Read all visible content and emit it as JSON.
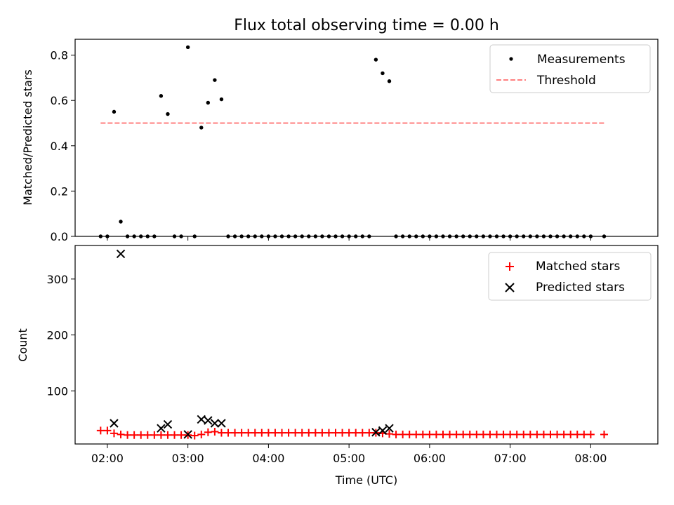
{
  "colors": {
    "threshold": "#ff7f7f",
    "matched": "#ff0000",
    "predicted": "#000000",
    "measurement": "#000000"
  },
  "chart_data": [
    {
      "type": "scatter",
      "title": "Flux total observing time = 0.00 h",
      "xlabel": "",
      "ylabel": "Matched/Predicted stars",
      "xlim": [
        "01:36",
        "08:50"
      ],
      "ylim": [
        0,
        0.87
      ],
      "yticks": [
        "0.0",
        "0.2",
        "0.4",
        "0.6",
        "0.8"
      ],
      "yticks_values": [
        0,
        0.2,
        0.4,
        0.6,
        0.8
      ],
      "xticks": [
        "02:00",
        "03:00",
        "04:00",
        "05:00",
        "06:00",
        "07:00",
        "08:00"
      ],
      "legend": {
        "position": "top-right",
        "entries": [
          "Measurements",
          "Threshold"
        ]
      },
      "threshold": {
        "name": "Threshold",
        "value": 0.5,
        "x_start": "01:55",
        "x_end": "08:10"
      },
      "series": [
        {
          "name": "Measurements",
          "points": [
            [
              "01:55",
              0
            ],
            [
              "02:00",
              0
            ],
            [
              "02:05",
              0.55
            ],
            [
              "02:10",
              0.065
            ],
            [
              "02:15",
              0
            ],
            [
              "02:20",
              0
            ],
            [
              "02:25",
              0
            ],
            [
              "02:30",
              0
            ],
            [
              "02:35",
              0
            ],
            [
              "02:40",
              0.62
            ],
            [
              "02:45",
              0.54
            ],
            [
              "02:50",
              0
            ],
            [
              "02:55",
              0
            ],
            [
              "03:00",
              0.835
            ],
            [
              "03:05",
              0
            ],
            [
              "03:10",
              0.48
            ],
            [
              "03:15",
              0.59
            ],
            [
              "03:20",
              0.69
            ],
            [
              "03:25",
              0.605
            ],
            [
              "03:30",
              0
            ],
            [
              "03:35",
              0
            ],
            [
              "03:40",
              0
            ],
            [
              "03:45",
              0
            ],
            [
              "03:50",
              0
            ],
            [
              "03:55",
              0
            ],
            [
              "04:00",
              0
            ],
            [
              "04:05",
              0
            ],
            [
              "04:10",
              0
            ],
            [
              "04:15",
              0
            ],
            [
              "04:20",
              0
            ],
            [
              "04:25",
              0
            ],
            [
              "04:30",
              0
            ],
            [
              "04:35",
              0
            ],
            [
              "04:40",
              0
            ],
            [
              "04:45",
              0
            ],
            [
              "04:50",
              0
            ],
            [
              "04:55",
              0
            ],
            [
              "05:00",
              0
            ],
            [
              "05:05",
              0
            ],
            [
              "05:10",
              0
            ],
            [
              "05:15",
              0
            ],
            [
              "05:20",
              0.78
            ],
            [
              "05:25",
              0.72
            ],
            [
              "05:30",
              0.685
            ],
            [
              "05:35",
              0
            ],
            [
              "05:40",
              0
            ],
            [
              "05:45",
              0
            ],
            [
              "05:50",
              0
            ],
            [
              "05:55",
              0
            ],
            [
              "06:00",
              0
            ],
            [
              "06:05",
              0
            ],
            [
              "06:10",
              0
            ],
            [
              "06:15",
              0
            ],
            [
              "06:20",
              0
            ],
            [
              "06:25",
              0
            ],
            [
              "06:30",
              0
            ],
            [
              "06:35",
              0
            ],
            [
              "06:40",
              0
            ],
            [
              "06:45",
              0
            ],
            [
              "06:50",
              0
            ],
            [
              "06:55",
              0
            ],
            [
              "07:00",
              0
            ],
            [
              "07:05",
              0
            ],
            [
              "07:10",
              0
            ],
            [
              "07:15",
              0
            ],
            [
              "07:20",
              0
            ],
            [
              "07:25",
              0
            ],
            [
              "07:30",
              0
            ],
            [
              "07:35",
              0
            ],
            [
              "07:40",
              0
            ],
            [
              "07:45",
              0
            ],
            [
              "07:50",
              0
            ],
            [
              "07:55",
              0
            ],
            [
              "08:00",
              0
            ],
            [
              "08:10",
              0
            ]
          ]
        }
      ]
    },
    {
      "type": "scatter",
      "title": "",
      "xlabel": "Time (UTC)",
      "ylabel": "Count",
      "xlim": [
        "01:36",
        "08:50"
      ],
      "ylim": [
        5,
        360
      ],
      "yticks": [
        "100",
        "200",
        "300"
      ],
      "yticks_values": [
        100,
        200,
        300
      ],
      "xticks": [
        "02:00",
        "03:00",
        "04:00",
        "05:00",
        "06:00",
        "07:00",
        "08:00"
      ],
      "legend": {
        "position": "top-right",
        "entries": [
          "Matched stars",
          "Predicted stars"
        ]
      },
      "series": [
        {
          "name": "Matched stars",
          "points": [
            [
              "01:55",
              29
            ],
            [
              "02:00",
              29
            ],
            [
              "02:05",
              24
            ],
            [
              "02:10",
              22
            ],
            [
              "02:15",
              21
            ],
            [
              "02:20",
              21
            ],
            [
              "02:25",
              21
            ],
            [
              "02:30",
              21
            ],
            [
              "02:35",
              21
            ],
            [
              "02:40",
              21
            ],
            [
              "02:45",
              21
            ],
            [
              "02:50",
              21
            ],
            [
              "02:55",
              21
            ],
            [
              "03:00",
              21
            ],
            [
              "03:05",
              20
            ],
            [
              "03:10",
              22
            ],
            [
              "03:15",
              26
            ],
            [
              "03:20",
              27
            ],
            [
              "03:25",
              25
            ],
            [
              "03:30",
              25
            ],
            [
              "03:35",
              25
            ],
            [
              "03:40",
              25
            ],
            [
              "03:45",
              25
            ],
            [
              "03:50",
              25
            ],
            [
              "03:55",
              25
            ],
            [
              "04:00",
              25
            ],
            [
              "04:05",
              25
            ],
            [
              "04:10",
              25
            ],
            [
              "04:15",
              25
            ],
            [
              "04:20",
              25
            ],
            [
              "04:25",
              25
            ],
            [
              "04:30",
              25
            ],
            [
              "04:35",
              25
            ],
            [
              "04:40",
              25
            ],
            [
              "04:45",
              25
            ],
            [
              "04:50",
              25
            ],
            [
              "04:55",
              25
            ],
            [
              "05:00",
              25
            ],
            [
              "05:05",
              25
            ],
            [
              "05:10",
              25
            ],
            [
              "05:15",
              25
            ],
            [
              "05:20",
              25
            ],
            [
              "05:25",
              24
            ],
            [
              "05:30",
              23
            ],
            [
              "05:35",
              22
            ],
            [
              "05:40",
              22
            ],
            [
              "05:45",
              22
            ],
            [
              "05:50",
              22
            ],
            [
              "05:55",
              22
            ],
            [
              "06:00",
              22
            ],
            [
              "06:05",
              22
            ],
            [
              "06:10",
              22
            ],
            [
              "06:15",
              22
            ],
            [
              "06:20",
              22
            ],
            [
              "06:25",
              22
            ],
            [
              "06:30",
              22
            ],
            [
              "06:35",
              22
            ],
            [
              "06:40",
              22
            ],
            [
              "06:45",
              22
            ],
            [
              "06:50",
              22
            ],
            [
              "06:55",
              22
            ],
            [
              "07:00",
              22
            ],
            [
              "07:05",
              22
            ],
            [
              "07:10",
              22
            ],
            [
              "07:15",
              22
            ],
            [
              "07:20",
              22
            ],
            [
              "07:25",
              22
            ],
            [
              "07:30",
              22
            ],
            [
              "07:35",
              22
            ],
            [
              "07:40",
              22
            ],
            [
              "07:45",
              22
            ],
            [
              "07:50",
              22
            ],
            [
              "07:55",
              22
            ],
            [
              "08:00",
              22
            ],
            [
              "08:10",
              22
            ]
          ]
        },
        {
          "name": "Predicted stars",
          "points": [
            [
              "02:05",
              42
            ],
            [
              "02:10",
              345
            ],
            [
              "02:40",
              33
            ],
            [
              "02:45",
              40
            ],
            [
              "03:00",
              22
            ],
            [
              "03:10",
              49
            ],
            [
              "03:15",
              47
            ],
            [
              "03:20",
              42
            ],
            [
              "03:25",
              42
            ],
            [
              "05:20",
              26
            ],
            [
              "05:25",
              29
            ],
            [
              "05:30",
              33
            ]
          ]
        }
      ]
    }
  ]
}
